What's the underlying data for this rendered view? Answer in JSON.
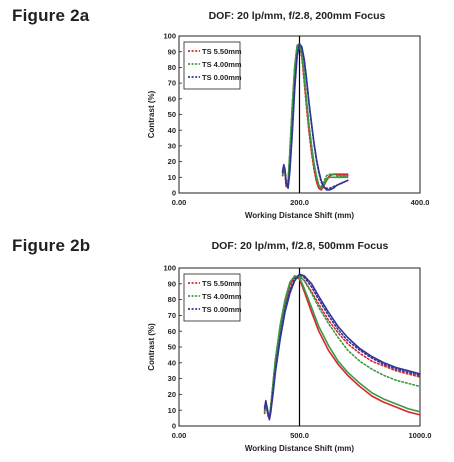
{
  "figures": [
    {
      "label": "Figure 2a"
    },
    {
      "label": "Figure 2b"
    }
  ],
  "colors": {
    "red": "#d8262e",
    "green": "#3a9a47",
    "blue": "#343493",
    "axis": "#231f20"
  },
  "chart_data": [
    {
      "type": "line",
      "title": "DOF: 20 lp/mm, f/2.8, 200mm Focus",
      "xlabel": "Working Distance Shift (mm)",
      "ylabel": "Contrast (%)",
      "xlim": [
        0,
        400
      ],
      "ylim": [
        0,
        100
      ],
      "xticks": [
        0,
        200,
        400
      ],
      "xtick_labels": [
        "0.00",
        "200.0",
        "400.0"
      ],
      "yticks": [
        0,
        10,
        20,
        30,
        40,
        50,
        60,
        70,
        80,
        90,
        100
      ],
      "ytick_labels": [
        "0",
        "10",
        "20",
        "30",
        "40",
        "50",
        "60",
        "70",
        "80",
        "90",
        "100"
      ],
      "focus_line_x": 200,
      "legend_placement": "top-left",
      "series": [
        {
          "name": "TS 5.50mm",
          "color": "red",
          "style": "solid",
          "x": [
            172,
            174,
            176,
            178,
            181,
            184,
            188,
            192,
            196,
            200,
            204,
            208,
            212,
            216,
            220,
            224,
            228,
            232,
            236,
            240,
            245,
            250,
            256,
            262,
            268,
            274,
            280
          ],
          "y": [
            11,
            16,
            13,
            4,
            6,
            24,
            52,
            78,
            93,
            95,
            88,
            72,
            55,
            40,
            27,
            16,
            8,
            3,
            2,
            4,
            8,
            11,
            12,
            12,
            12,
            12,
            12
          ]
        },
        {
          "name": "TS 5.50mm",
          "color": "red",
          "style": "dotted",
          "x": [
            172,
            174,
            176,
            178,
            181,
            184,
            188,
            192,
            196,
            200,
            204,
            208,
            212,
            216,
            220,
            224,
            228,
            232,
            236,
            240,
            245,
            250,
            256,
            262,
            268,
            274,
            280
          ],
          "y": [
            11,
            15,
            12,
            5,
            7,
            26,
            55,
            80,
            94,
            94,
            86,
            70,
            53,
            38,
            25,
            15,
            7,
            3,
            3,
            6,
            9,
            11,
            12,
            12,
            11,
            11,
            11
          ]
        },
        {
          "name": "TS 4.00mm",
          "color": "green",
          "style": "solid",
          "x": [
            172,
            174,
            176,
            178,
            181,
            184,
            188,
            192,
            196,
            200,
            204,
            208,
            212,
            216,
            220,
            224,
            228,
            232,
            236,
            240,
            245,
            250,
            256,
            262,
            268,
            274,
            280
          ],
          "y": [
            13,
            17,
            14,
            6,
            6,
            26,
            55,
            80,
            94,
            95,
            89,
            75,
            58,
            43,
            30,
            19,
            11,
            5,
            3,
            5,
            9,
            10,
            10,
            10,
            10,
            10,
            10
          ]
        },
        {
          "name": "TS 4.00mm",
          "color": "green",
          "style": "dotted",
          "x": [
            172,
            174,
            176,
            178,
            181,
            184,
            188,
            192,
            196,
            200,
            204,
            208,
            212,
            216,
            220,
            224,
            228,
            232,
            236,
            240,
            245,
            250,
            256,
            262,
            268,
            274,
            280
          ],
          "y": [
            12,
            16,
            13,
            7,
            8,
            28,
            57,
            81,
            93,
            94,
            88,
            74,
            57,
            42,
            29,
            18,
            10,
            5,
            4,
            7,
            11,
            12,
            12,
            11,
            11,
            11,
            11
          ]
        },
        {
          "name": "TS 0.00mm",
          "color": "blue",
          "style": "solid",
          "x": [
            172,
            174,
            176,
            178,
            181,
            184,
            188,
            192,
            196,
            200,
            204,
            208,
            212,
            216,
            220,
            224,
            228,
            232,
            236,
            240,
            245,
            250,
            256,
            262,
            268,
            274,
            280
          ],
          "y": [
            14,
            18,
            15,
            7,
            3,
            14,
            38,
            66,
            87,
            95,
            93,
            85,
            72,
            57,
            44,
            32,
            22,
            14,
            8,
            4,
            2,
            2,
            3,
            5,
            6,
            7,
            8
          ]
        },
        {
          "name": "TS 0.00mm",
          "color": "blue",
          "style": "dotted",
          "x": [
            172,
            174,
            176,
            178,
            181,
            184,
            188,
            192,
            196,
            200,
            204,
            208,
            212,
            216,
            220,
            224,
            228,
            232,
            236,
            240,
            245,
            250,
            256,
            262,
            268,
            274,
            280
          ],
          "y": [
            13,
            17,
            14,
            6,
            4,
            16,
            40,
            68,
            88,
            95,
            92,
            84,
            71,
            56,
            43,
            31,
            21,
            13,
            7,
            4,
            3,
            3,
            4,
            5,
            6,
            7,
            8
          ]
        }
      ]
    },
    {
      "type": "line",
      "title": "DOF: 20 lp/mm, f/2.8, 500mm Focus",
      "xlabel": "Working Distance Shift (mm)",
      "ylabel": "Contrast (%)",
      "xlim": [
        0,
        1000
      ],
      "ylim": [
        0,
        100
      ],
      "xticks": [
        0,
        500,
        1000
      ],
      "xtick_labels": [
        "0.00",
        "500.0",
        "1000.0"
      ],
      "yticks": [
        0,
        10,
        20,
        30,
        40,
        50,
        60,
        70,
        80,
        90,
        100
      ],
      "ytick_labels": [
        "0",
        "10",
        "20",
        "30",
        "40",
        "50",
        "60",
        "70",
        "80",
        "90",
        "100"
      ],
      "focus_line_x": 500,
      "legend_placement": "top-left",
      "series": [
        {
          "name": "TS 5.50mm",
          "color": "red",
          "style": "solid",
          "x": [
            355,
            360,
            365,
            370,
            375,
            380,
            390,
            400,
            420,
            440,
            460,
            480,
            500,
            520,
            550,
            580,
            620,
            660,
            700,
            750,
            800,
            850,
            900,
            950,
            1000
          ],
          "y": [
            8,
            14,
            10,
            6,
            5,
            10,
            25,
            40,
            62,
            78,
            90,
            95,
            93,
            85,
            72,
            60,
            48,
            39,
            32,
            25,
            19,
            15,
            12,
            9,
            7
          ]
        },
        {
          "name": "TS 5.50mm",
          "color": "red",
          "style": "dotted",
          "x": [
            355,
            360,
            365,
            370,
            375,
            380,
            390,
            400,
            420,
            440,
            460,
            480,
            500,
            520,
            550,
            580,
            620,
            660,
            700,
            750,
            800,
            850,
            900,
            950,
            1000
          ],
          "y": [
            9,
            13,
            11,
            7,
            6,
            12,
            27,
            42,
            63,
            79,
            89,
            94,
            95,
            92,
            85,
            77,
            67,
            59,
            52,
            46,
            41,
            38,
            35,
            33,
            31
          ]
        },
        {
          "name": "TS 4.00mm",
          "color": "green",
          "style": "solid",
          "x": [
            355,
            360,
            365,
            370,
            375,
            380,
            390,
            400,
            420,
            440,
            460,
            480,
            500,
            520,
            550,
            580,
            620,
            660,
            700,
            750,
            800,
            850,
            900,
            950,
            1000
          ],
          "y": [
            10,
            15,
            11,
            7,
            6,
            11,
            27,
            42,
            64,
            80,
            91,
            95,
            94,
            87,
            75,
            63,
            51,
            41,
            34,
            27,
            21,
            17,
            14,
            11,
            9
          ]
        },
        {
          "name": "TS 4.00mm",
          "color": "green",
          "style": "dotted",
          "x": [
            355,
            360,
            365,
            370,
            375,
            380,
            390,
            400,
            420,
            440,
            460,
            480,
            500,
            520,
            550,
            580,
            620,
            660,
            700,
            750,
            800,
            850,
            900,
            950,
            1000
          ],
          "y": [
            9,
            13,
            10,
            6,
            5,
            10,
            24,
            38,
            59,
            75,
            86,
            92,
            95,
            92,
            84,
            75,
            65,
            56,
            48,
            41,
            36,
            32,
            29,
            27,
            25
          ]
        },
        {
          "name": "TS 0.00mm",
          "color": "blue",
          "style": "solid",
          "x": [
            355,
            360,
            365,
            370,
            375,
            380,
            390,
            400,
            420,
            440,
            460,
            480,
            500,
            520,
            550,
            580,
            620,
            660,
            700,
            750,
            800,
            850,
            900,
            950,
            1000
          ],
          "y": [
            11,
            16,
            12,
            8,
            4,
            8,
            20,
            34,
            55,
            72,
            84,
            92,
            96,
            95,
            90,
            82,
            72,
            63,
            56,
            49,
            44,
            40,
            37,
            35,
            33
          ]
        },
        {
          "name": "TS 0.00mm",
          "color": "blue",
          "style": "dotted",
          "x": [
            355,
            360,
            365,
            370,
            375,
            380,
            390,
            400,
            420,
            440,
            460,
            480,
            500,
            520,
            550,
            580,
            620,
            660,
            700,
            750,
            800,
            850,
            900,
            950,
            1000
          ],
          "y": [
            12,
            15,
            12,
            7,
            5,
            9,
            22,
            36,
            57,
            74,
            86,
            93,
            96,
            94,
            88,
            80,
            70,
            61,
            54,
            48,
            43,
            39,
            36,
            34,
            32
          ]
        }
      ]
    }
  ]
}
